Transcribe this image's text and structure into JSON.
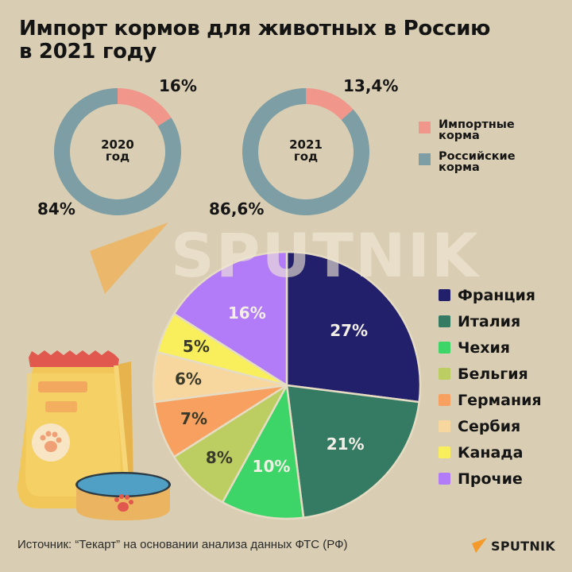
{
  "title": {
    "line1": "Импорт кормов для животных в Россию",
    "line2": "в 2021 году"
  },
  "colors": {
    "background": "#d9ceb3",
    "imported": "#f0968a",
    "russian": "#7d9ea5"
  },
  "donuts": [
    {
      "year_label": "2020",
      "unit_label": "год",
      "imported_label": "16%",
      "russian_label": "84%",
      "imported_value": 16,
      "russian_value": 84
    },
    {
      "year_label": "2021",
      "unit_label": "год",
      "imported_label": "13,4%",
      "russian_label": "86,6%",
      "imported_value": 13.4,
      "russian_value": 86.6
    }
  ],
  "donut_legend": [
    {
      "line1": "Импортные",
      "line2": "корма",
      "color": "#f0968a"
    },
    {
      "line1": "Российские",
      "line2": "корма",
      "color": "#7d9ea5"
    }
  ],
  "watermark": "SPUTNIK",
  "pie_legend": [
    {
      "label": "Франция",
      "color": "#22206a"
    },
    {
      "label": "Италия",
      "color": "#357a63"
    },
    {
      "label": "Чехия",
      "color": "#3dd468"
    },
    {
      "label": "Бельгия",
      "color": "#bccd62"
    },
    {
      "label": "Германия",
      "color": "#f8a05f"
    },
    {
      "label": "Сербия",
      "color": "#f7d79d"
    },
    {
      "label": "Канада",
      "color": "#f9ef5c"
    },
    {
      "label": "Прочие",
      "color": "#b27bf7"
    }
  ],
  "pie_labels": [
    "27%",
    "21%",
    "10%",
    "8%",
    "7%",
    "6%",
    "5%",
    "16%"
  ],
  "chart_data": [
    {
      "type": "pie",
      "subtype": "donut",
      "title": "2020 год",
      "categories": [
        "Импортные корма",
        "Российские корма"
      ],
      "values": [
        16,
        84
      ],
      "legend_position": "right"
    },
    {
      "type": "pie",
      "subtype": "donut",
      "title": "2021 год",
      "categories": [
        "Импортные корма",
        "Российские корма"
      ],
      "values": [
        13.4,
        86.6
      ],
      "legend_position": "right"
    },
    {
      "type": "pie",
      "title": "Импорт кормов для животных в Россию в 2021 году",
      "categories": [
        "Франция",
        "Италия",
        "Чехия",
        "Бельгия",
        "Германия",
        "Сербия",
        "Канада",
        "Прочие"
      ],
      "values": [
        27,
        21,
        10,
        8,
        7,
        6,
        5,
        16
      ],
      "unit": "%",
      "legend_position": "right"
    }
  ],
  "footer": {
    "source": "Источник: “Текарт” на основании анализа данных ФТС (РФ)",
    "brand": "SPUTNIK"
  }
}
